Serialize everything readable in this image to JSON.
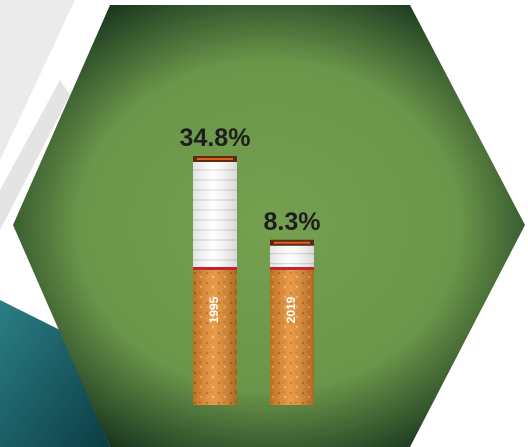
{
  "chart_data": {
    "type": "bar",
    "categories": [
      "1995",
      "2019"
    ],
    "values": [
      34.8,
      8.3
    ],
    "value_labels": [
      "34.8%",
      "8.3%"
    ],
    "color": "#ffffff"
  }
}
